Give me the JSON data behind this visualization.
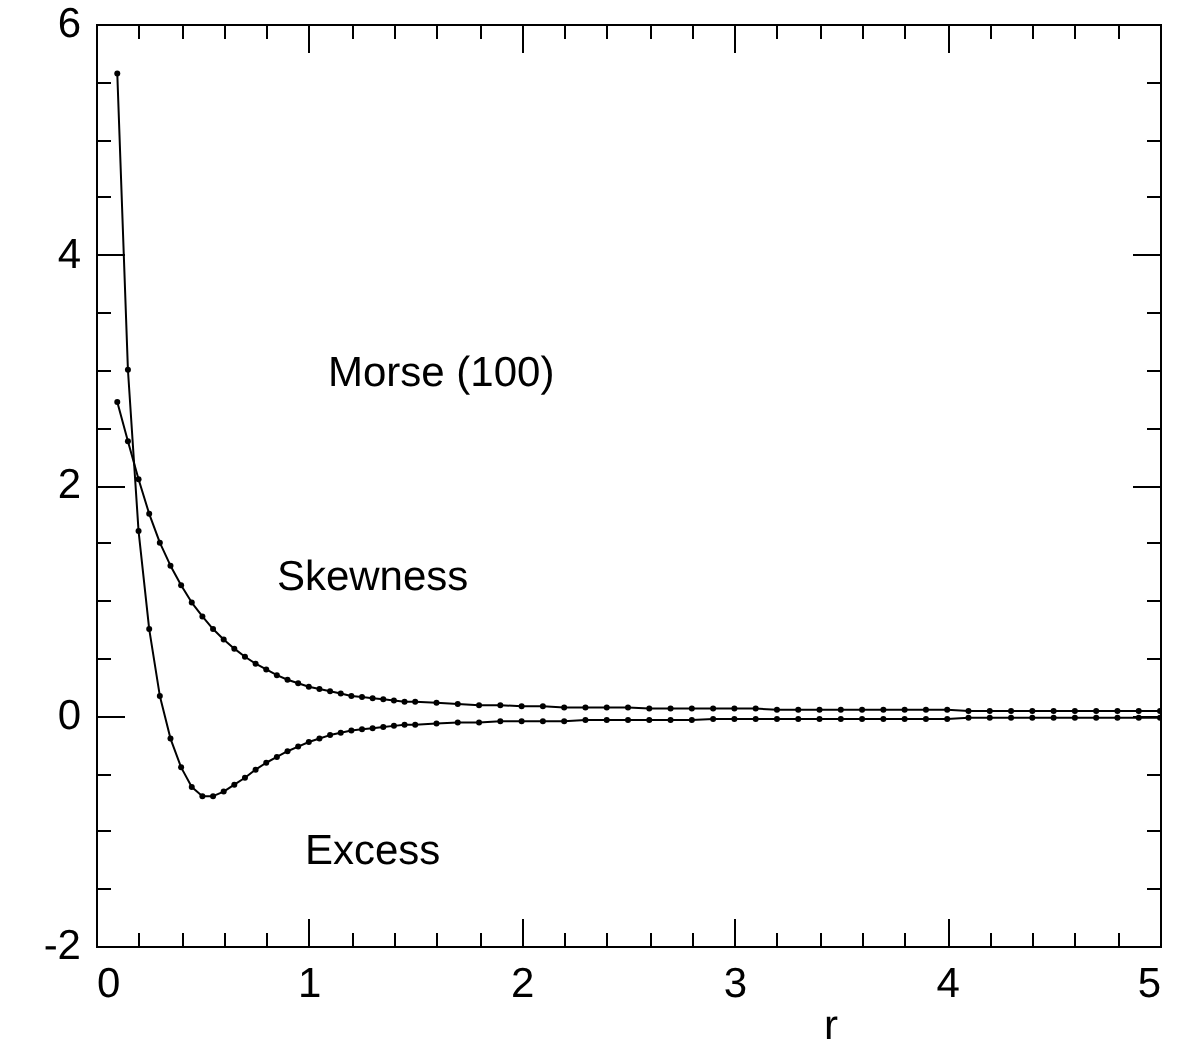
{
  "chart_data": {
    "type": "line",
    "annotations": [
      "Morse (100)"
    ],
    "xlabel": "r",
    "xlim": [
      0,
      5
    ],
    "ylim": [
      -2,
      6
    ],
    "xticks": [
      0,
      {
        "value": 0.2,
        "label": null
      },
      {
        "value": 0.4,
        "label": null
      },
      {
        "value": 0.6,
        "label": null
      },
      {
        "value": 0.8,
        "label": null
      },
      1,
      {
        "value": 1.2,
        "label": null
      },
      {
        "value": 1.4,
        "label": null
      },
      {
        "value": 1.6,
        "label": null
      },
      {
        "value": 1.8,
        "label": null
      },
      2,
      {
        "value": 2.2,
        "label": null
      },
      {
        "value": 2.4,
        "label": null
      },
      {
        "value": 2.6,
        "label": null
      },
      {
        "value": 2.8,
        "label": null
      },
      3,
      {
        "value": 3.2,
        "label": null
      },
      {
        "value": 3.4,
        "label": null
      },
      {
        "value": 3.6,
        "label": null
      },
      {
        "value": 3.8,
        "label": null
      },
      4,
      {
        "value": 4.2,
        "label": null
      },
      {
        "value": 4.4,
        "label": null
      },
      {
        "value": 4.6,
        "label": null
      },
      {
        "value": 4.8,
        "label": null
      },
      5
    ],
    "yticks": [
      -2,
      {
        "value": -1.5,
        "label": null
      },
      {
        "value": -1,
        "label": null
      },
      {
        "value": -0.5,
        "label": null
      },
      0,
      {
        "value": 0.5,
        "label": null
      },
      {
        "value": 1,
        "label": null
      },
      {
        "value": 1.5,
        "label": null
      },
      2,
      {
        "value": 2.5,
        "label": null
      },
      {
        "value": 3,
        "label": null
      },
      {
        "value": 3.5,
        "label": null
      },
      4,
      {
        "value": 4.5,
        "label": null
      },
      {
        "value": 5,
        "label": null
      },
      {
        "value": 5.5,
        "label": null
      },
      6
    ],
    "marker": "circle",
    "grid": false,
    "x": [
      0.1,
      0.15,
      0.2,
      0.25,
      0.3,
      0.35,
      0.4,
      0.45,
      0.5,
      0.55,
      0.6,
      0.65,
      0.7,
      0.75,
      0.8,
      0.85,
      0.9,
      0.95,
      1.0,
      1.05,
      1.1,
      1.15,
      1.2,
      1.25,
      1.3,
      1.35,
      1.4,
      1.45,
      1.5,
      1.6,
      1.7,
      1.8,
      1.9,
      2.0,
      2.1,
      2.2,
      2.3,
      2.4,
      2.5,
      2.6,
      2.7,
      2.8,
      2.9,
      3.0,
      3.1,
      3.2,
      3.3,
      3.4,
      3.5,
      3.6,
      3.7,
      3.8,
      3.9,
      4.0,
      4.1,
      4.2,
      4.3,
      4.4,
      4.5,
      4.6,
      4.7,
      4.8,
      4.9,
      5.0
    ],
    "series": [
      {
        "name": "Skewness",
        "color": "#000000",
        "values": [
          2.72,
          2.38,
          2.05,
          1.75,
          1.5,
          1.3,
          1.13,
          0.98,
          0.86,
          0.75,
          0.66,
          0.58,
          0.51,
          0.45,
          0.4,
          0.35,
          0.31,
          0.28,
          0.25,
          0.23,
          0.21,
          0.19,
          0.17,
          0.16,
          0.15,
          0.14,
          0.13,
          0.12,
          0.12,
          0.11,
          0.1,
          0.09,
          0.09,
          0.08,
          0.08,
          0.07,
          0.07,
          0.07,
          0.07,
          0.06,
          0.06,
          0.06,
          0.06,
          0.06,
          0.06,
          0.05,
          0.05,
          0.05,
          0.05,
          0.05,
          0.05,
          0.05,
          0.05,
          0.05,
          0.04,
          0.04,
          0.04,
          0.04,
          0.04,
          0.04,
          0.04,
          0.04,
          0.04,
          0.04
        ]
      },
      {
        "name": "Excess",
        "color": "#000000",
        "values": [
          5.57,
          3.0,
          1.6,
          0.75,
          0.17,
          -0.2,
          -0.45,
          -0.62,
          -0.7,
          -0.7,
          -0.66,
          -0.6,
          -0.54,
          -0.47,
          -0.41,
          -0.36,
          -0.31,
          -0.27,
          -0.23,
          -0.2,
          -0.17,
          -0.15,
          -0.13,
          -0.12,
          -0.11,
          -0.1,
          -0.09,
          -0.08,
          -0.08,
          -0.07,
          -0.06,
          -0.06,
          -0.05,
          -0.05,
          -0.05,
          -0.05,
          -0.04,
          -0.04,
          -0.04,
          -0.04,
          -0.04,
          -0.04,
          -0.03,
          -0.03,
          -0.03,
          -0.03,
          -0.03,
          -0.03,
          -0.03,
          -0.03,
          -0.03,
          -0.03,
          -0.03,
          -0.03,
          -0.02,
          -0.02,
          -0.02,
          -0.02,
          -0.02,
          -0.02,
          -0.02,
          -0.02,
          -0.02,
          -0.02
        ]
      }
    ]
  }
}
